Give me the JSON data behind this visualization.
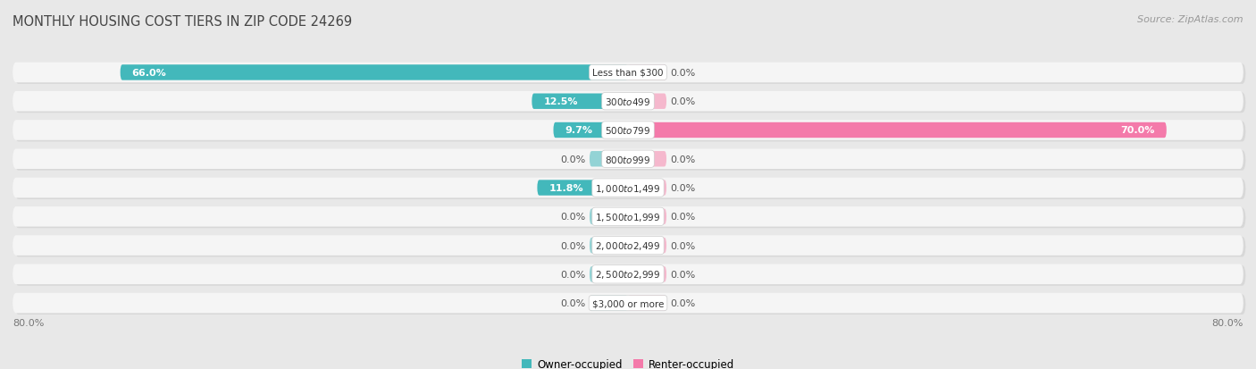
{
  "title": "MONTHLY HOUSING COST TIERS IN ZIP CODE 24269",
  "source": "Source: ZipAtlas.com",
  "categories": [
    "Less than $300",
    "$300 to $499",
    "$500 to $799",
    "$800 to $999",
    "$1,000 to $1,499",
    "$1,500 to $1,999",
    "$2,000 to $2,499",
    "$2,500 to $2,999",
    "$3,000 or more"
  ],
  "owner_values": [
    66.0,
    12.5,
    9.7,
    0.0,
    11.8,
    0.0,
    0.0,
    0.0,
    0.0
  ],
  "renter_values": [
    0.0,
    0.0,
    70.0,
    0.0,
    0.0,
    0.0,
    0.0,
    0.0,
    0.0
  ],
  "owner_color": "#43b8bb",
  "renter_color": "#f47aaa",
  "renter_zero_color": "#f5b8cd",
  "background_color": "#e8e8e8",
  "row_bg_color": "#f5f5f5",
  "row_bg_shadow": "#d8d8d8",
  "label_color": "#555555",
  "axis_limit": 80.0,
  "zero_bar_width": 5.0,
  "title_fontsize": 10.5,
  "source_fontsize": 8,
  "value_fontsize": 8,
  "cat_fontsize": 7.5,
  "tick_fontsize": 8,
  "legend_fontsize": 8.5
}
